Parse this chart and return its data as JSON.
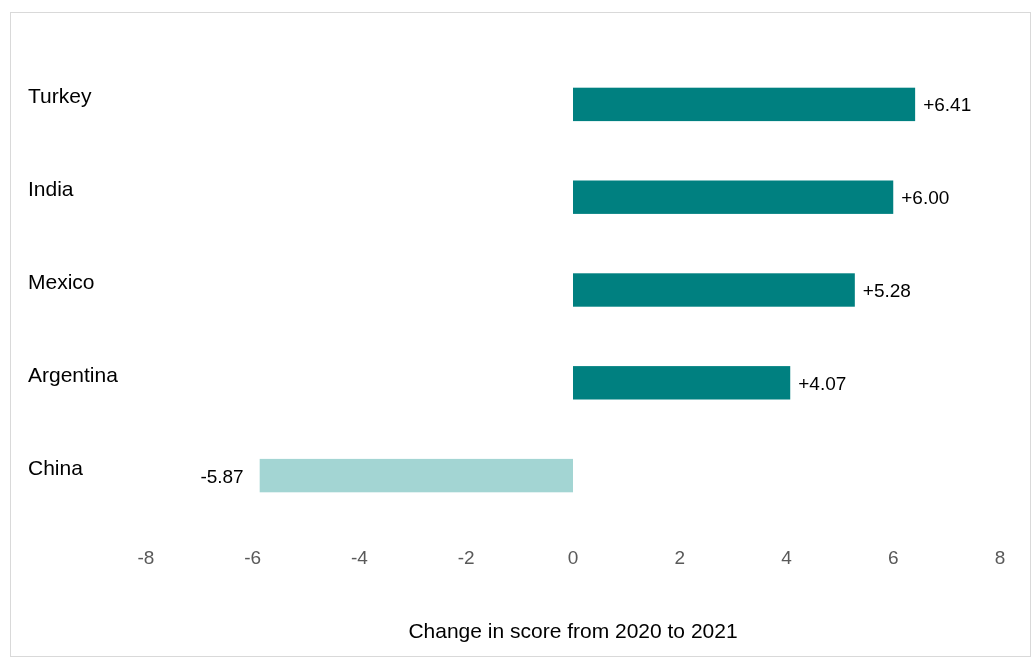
{
  "chart_data": {
    "type": "bar",
    "orientation": "horizontal",
    "xlabel": "Change in score from 2020 to 2021",
    "categories": [
      "Turkey",
      "India",
      "Mexico",
      "Argentina",
      "China"
    ],
    "values": [
      6.41,
      6.0,
      5.28,
      4.07,
      -5.87
    ],
    "value_labels": [
      "+6.41",
      "+6.00",
      "+5.28",
      "+4.07",
      "-5.87"
    ],
    "colors": [
      "#008080",
      "#008080",
      "#008080",
      "#008080",
      "#a3d5d3"
    ],
    "xlim": [
      -8,
      8
    ],
    "xticks": [
      -8,
      -6,
      -4,
      -2,
      0,
      2,
      4,
      6,
      8
    ],
    "grid": false
  }
}
